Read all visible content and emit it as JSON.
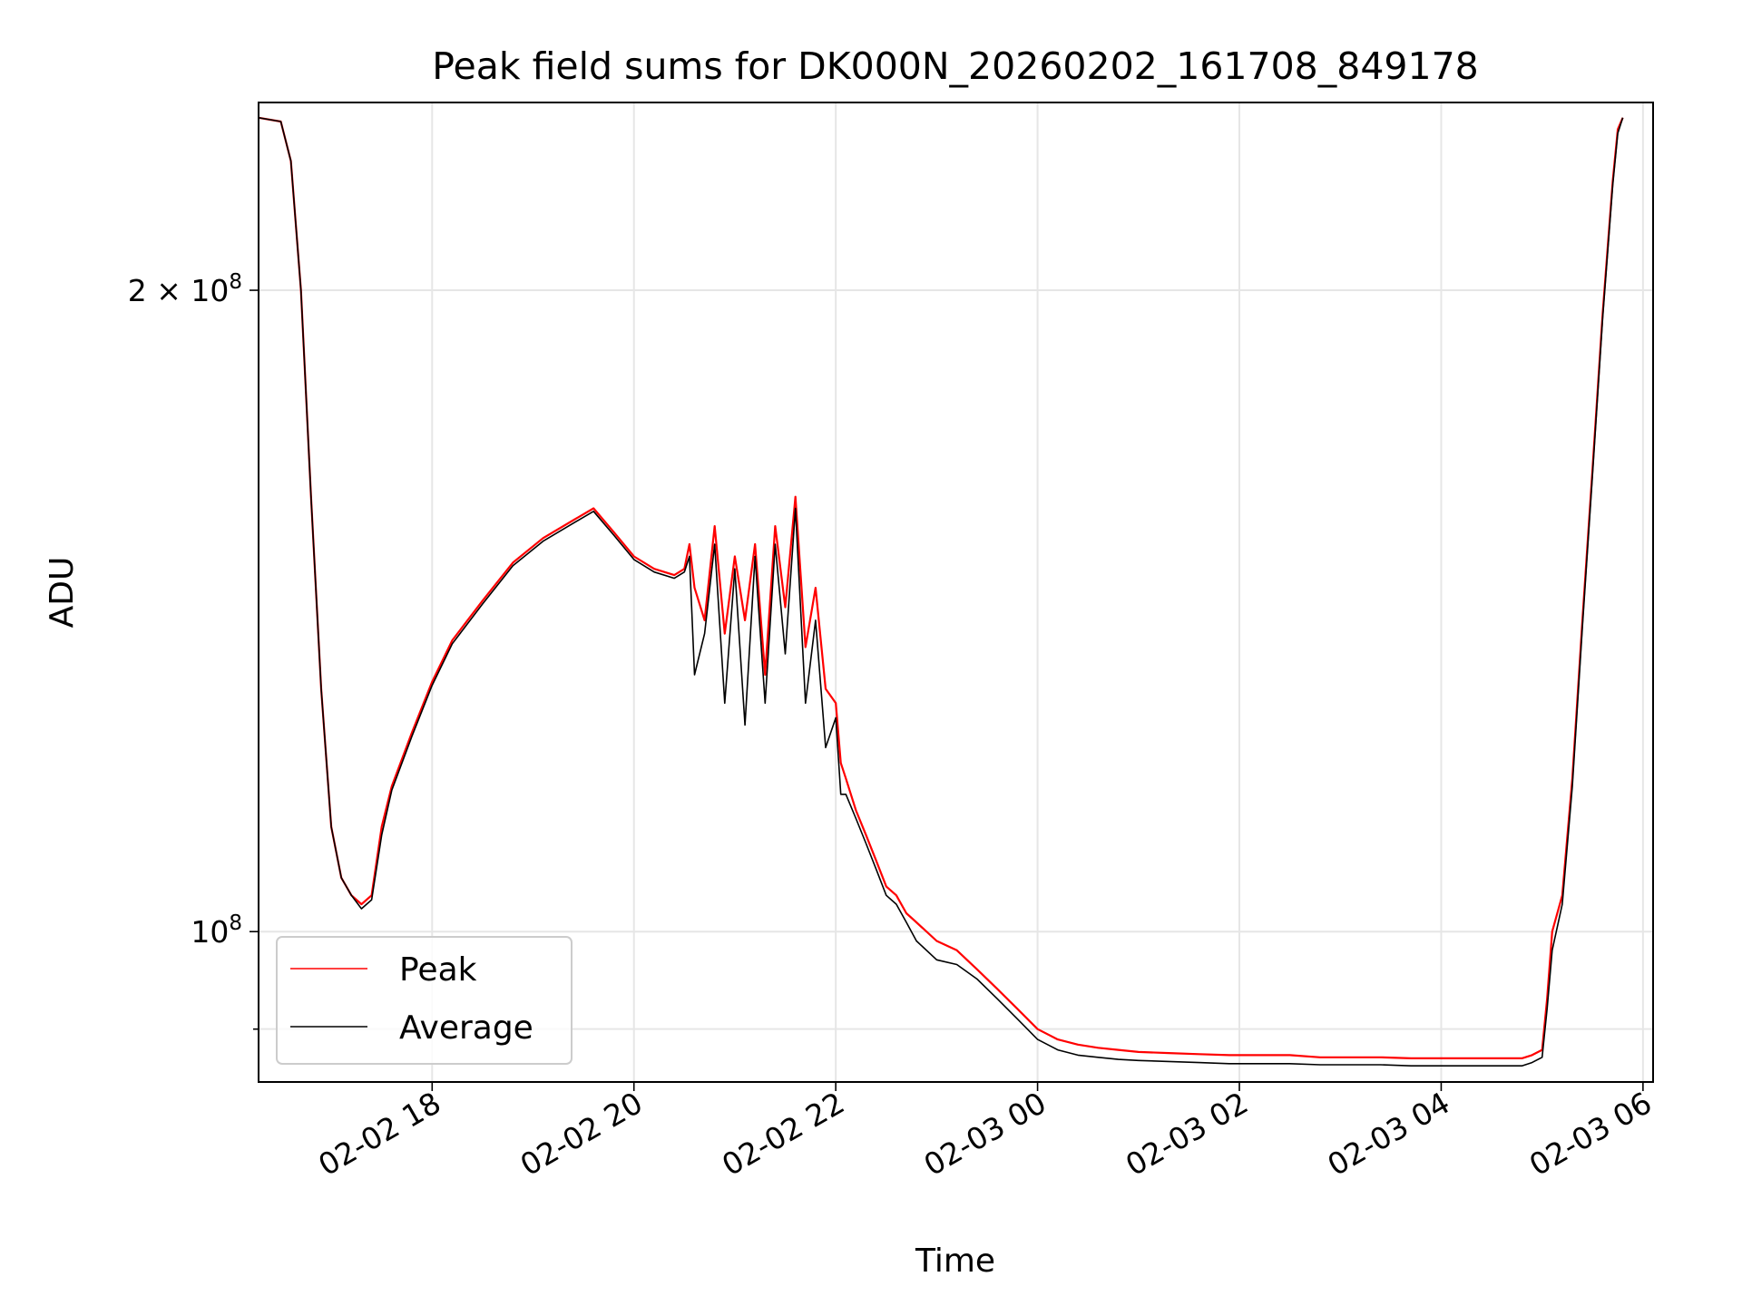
{
  "chart_data": {
    "type": "line",
    "title": "Peak field sums for DK000N_20260202_161708_849178",
    "xlabel": "Time",
    "ylabel": "ADU",
    "yscale": "log",
    "grid": true,
    "legend_position": "lower-left",
    "x_unit": "hours since 02-02 00:00",
    "xlim": [
      16.28,
      30.1
    ],
    "ylim": [
      85000000,
      245000000
    ],
    "x_ticks": [
      {
        "value": 18,
        "label": "02-02 18"
      },
      {
        "value": 20,
        "label": "02-02 20"
      },
      {
        "value": 22,
        "label": "02-02 22"
      },
      {
        "value": 24,
        "label": "02-03 00"
      },
      {
        "value": 26,
        "label": "02-03 02"
      },
      {
        "value": 28,
        "label": "02-03 04"
      },
      {
        "value": 30,
        "label": "02-03 06"
      }
    ],
    "y_ticks": [
      {
        "value": 100000000,
        "base": "10",
        "exp": "8",
        "coef": ""
      },
      {
        "value": 200000000,
        "base": "10",
        "exp": "8",
        "coef": "2 × "
      }
    ],
    "y_minor_ticks": [
      90000000
    ],
    "series": [
      {
        "name": "Peak",
        "color": "#ff0000",
        "x": [
          16.28,
          16.5,
          16.6,
          16.7,
          16.8,
          16.9,
          17.0,
          17.1,
          17.2,
          17.3,
          17.4,
          17.5,
          17.6,
          17.8,
          18.0,
          18.2,
          18.5,
          18.8,
          19.1,
          19.4,
          19.6,
          19.8,
          20.0,
          20.2,
          20.4,
          20.5,
          20.55,
          20.6,
          20.7,
          20.8,
          20.9,
          21.0,
          21.1,
          21.2,
          21.3,
          21.4,
          21.5,
          21.6,
          21.7,
          21.8,
          21.9,
          22.0,
          22.05,
          22.1,
          22.2,
          22.3,
          22.4,
          22.5,
          22.6,
          22.7,
          22.8,
          23.0,
          23.2,
          23.4,
          23.6,
          23.8,
          24.0,
          24.2,
          24.4,
          24.6,
          24.8,
          25.0,
          25.3,
          25.6,
          25.9,
          26.2,
          26.5,
          26.8,
          27.1,
          27.4,
          27.7,
          28.0,
          28.3,
          28.6,
          28.8,
          28.9,
          29.0,
          29.05,
          29.1,
          29.2,
          29.3,
          29.4,
          29.5,
          29.6,
          29.7,
          29.75,
          29.8
        ],
        "values": [
          241000000,
          240000000,
          230000000,
          200000000,
          160000000,
          130000000,
          112000000,
          106000000,
          104000000,
          103000000,
          104000000,
          112000000,
          117000000,
          124000000,
          131000000,
          137000000,
          143000000,
          149000000,
          153000000,
          156000000,
          158000000,
          154000000,
          150000000,
          148000000,
          147000000,
          148000000,
          152000000,
          145000000,
          140000000,
          155000000,
          138000000,
          150000000,
          140000000,
          152000000,
          132000000,
          155000000,
          142000000,
          160000000,
          136000000,
          145000000,
          130000000,
          128000000,
          120000000,
          118000000,
          114000000,
          111000000,
          108000000,
          105000000,
          104000000,
          102000000,
          101000000,
          99000000,
          98000000,
          96000000,
          94000000,
          92000000,
          90000000,
          89000000,
          88500000,
          88200000,
          88000000,
          87800000,
          87700000,
          87600000,
          87500000,
          87500000,
          87500000,
          87300000,
          87300000,
          87300000,
          87200000,
          87200000,
          87200000,
          87200000,
          87200000,
          87500000,
          88000000,
          93000000,
          100000000,
          104000000,
          118000000,
          140000000,
          165000000,
          195000000,
          225000000,
          238000000,
          241000000
        ]
      },
      {
        "name": "Average",
        "color": "#000000",
        "x": [
          16.28,
          16.5,
          16.6,
          16.7,
          16.8,
          16.9,
          17.0,
          17.1,
          17.2,
          17.3,
          17.4,
          17.5,
          17.6,
          17.8,
          18.0,
          18.2,
          18.5,
          18.8,
          19.1,
          19.4,
          19.6,
          19.8,
          20.0,
          20.2,
          20.4,
          20.5,
          20.55,
          20.6,
          20.7,
          20.8,
          20.9,
          21.0,
          21.1,
          21.2,
          21.3,
          21.4,
          21.5,
          21.6,
          21.7,
          21.8,
          21.9,
          22.0,
          22.05,
          22.1,
          22.2,
          22.3,
          22.4,
          22.5,
          22.6,
          22.7,
          22.8,
          23.0,
          23.2,
          23.4,
          23.6,
          23.8,
          24.0,
          24.2,
          24.4,
          24.6,
          24.8,
          25.0,
          25.3,
          25.6,
          25.9,
          26.2,
          26.5,
          26.8,
          27.1,
          27.4,
          27.7,
          28.0,
          28.3,
          28.6,
          28.8,
          28.9,
          29.0,
          29.05,
          29.1,
          29.2,
          29.3,
          29.4,
          29.5,
          29.6,
          29.7,
          29.75,
          29.8
        ],
        "values": [
          241000000,
          240000000,
          230000000,
          200000000,
          160000000,
          130000000,
          112000000,
          106000000,
          104000000,
          102500000,
          103500000,
          111000000,
          116500000,
          123500000,
          130500000,
          136500000,
          142500000,
          148500000,
          152500000,
          155500000,
          157500000,
          153500000,
          149500000,
          147500000,
          146500000,
          147500000,
          150000000,
          132000000,
          138000000,
          152000000,
          128000000,
          148000000,
          125000000,
          150000000,
          128000000,
          152000000,
          135000000,
          158000000,
          128000000,
          140000000,
          122000000,
          126000000,
          116000000,
          116000000,
          113000000,
          110000000,
          107000000,
          104000000,
          103000000,
          101000000,
          99000000,
          97000000,
          96500000,
          95000000,
          93000000,
          91000000,
          89000000,
          88000000,
          87500000,
          87300000,
          87100000,
          87000000,
          86900000,
          86800000,
          86700000,
          86700000,
          86700000,
          86600000,
          86600000,
          86600000,
          86500000,
          86500000,
          86500000,
          86500000,
          86500000,
          86800000,
          87300000,
          92000000,
          98000000,
          103000000,
          117000000,
          139000000,
          164000000,
          194000000,
          224000000,
          237000000,
          241000000
        ]
      }
    ]
  }
}
